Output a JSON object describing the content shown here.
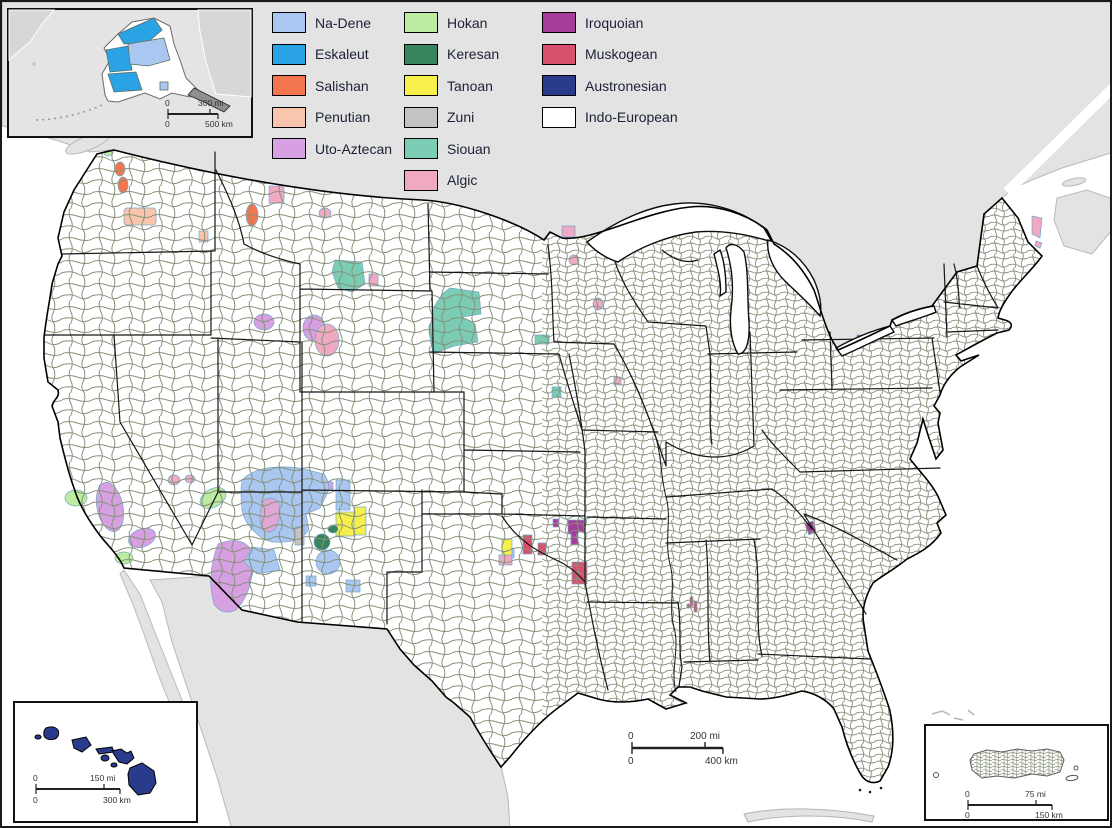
{
  "palette": {
    "na_dene": "#a9c7f0",
    "eskaleut": "#29a3e3",
    "salishan": "#f4764e",
    "penutian": "#f9c6ad",
    "uto_aztecan": "#d6a0e2",
    "hokan": "#bcec9f",
    "keresan": "#37845f",
    "tanoan": "#f7f04b",
    "zuni": "#c3c3c3",
    "siouan": "#7bccb5",
    "algic": "#f0a9c2",
    "iroquoian": "#a63d9c",
    "muskogean": "#d94f6e",
    "austronesian": "#2b3b8c",
    "indo_european": "#ffffff",
    "hopi_pink": "#e0a6d5",
    "paiute_pink": "#edabc8"
  },
  "legend": {
    "columns": [
      [
        {
          "id": "na_dene",
          "label": "Na-Dene"
        },
        {
          "id": "eskaleut",
          "label": "Eskaleut"
        },
        {
          "id": "salishan",
          "label": "Salishan"
        },
        {
          "id": "penutian",
          "label": "Penutian"
        },
        {
          "id": "uto_aztecan",
          "label": "Uto-Aztecan"
        }
      ],
      [
        {
          "id": "hokan",
          "label": "Hokan"
        },
        {
          "id": "keresan",
          "label": "Keresan"
        },
        {
          "id": "tanoan",
          "label": "Tanoan"
        },
        {
          "id": "zuni",
          "label": "Zuni"
        },
        {
          "id": "siouan",
          "label": "Siouan"
        },
        {
          "id": "algic",
          "label": "Algic"
        }
      ],
      [
        {
          "id": "iroquoian",
          "label": "Iroquoian"
        },
        {
          "id": "muskogean",
          "label": "Muskogean"
        },
        {
          "id": "austronesian",
          "label": "Austronesian"
        },
        {
          "id": "indo_european",
          "label": "Indo-European"
        }
      ]
    ]
  },
  "scalebars": {
    "main": {
      "zero": "0",
      "mi": "200 mi",
      "km": "400 km"
    },
    "alaska": {
      "zero": "0",
      "mi": "300 mi",
      "km": "500 km"
    },
    "hawaii": {
      "zero": "0",
      "mi": "150 mi",
      "km": "300 km"
    },
    "puerto_rico": {
      "zero": "0",
      "mi": "75 mi",
      "km": "150 km"
    }
  }
}
